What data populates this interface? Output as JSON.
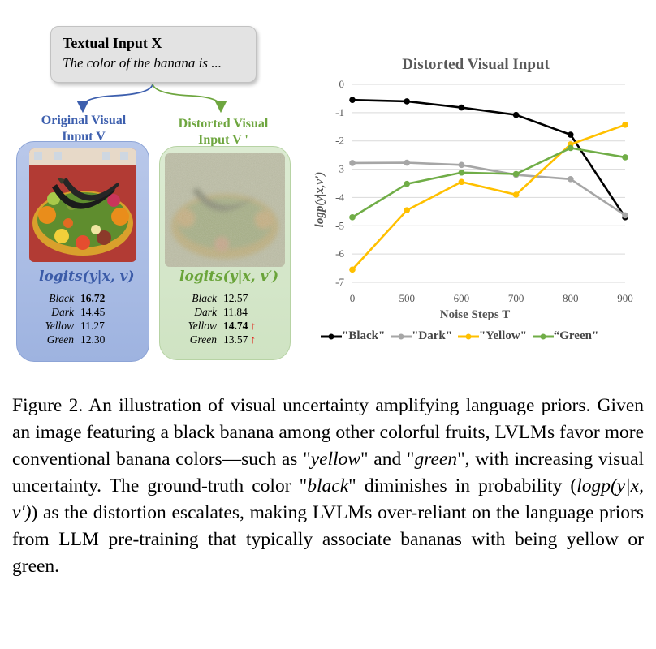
{
  "textual_input": {
    "title": "Textual Input X",
    "prompt": "The color of the banana is ..."
  },
  "original": {
    "label": "Original Visual Input V",
    "logits_title": "logits(y|x, v)",
    "rows": [
      {
        "name": "Black",
        "value": "16.72",
        "bold": true,
        "up": false
      },
      {
        "name": "Dark",
        "value": "14.45",
        "bold": false,
        "up": false
      },
      {
        "name": "Yellow",
        "value": "11.27",
        "bold": false,
        "up": false
      },
      {
        "name": "Green",
        "value": "12.30",
        "bold": false,
        "up": false
      }
    ]
  },
  "distorted": {
    "label": "Distorted Visual Input V '",
    "logits_title": "logits(y|x, v′)",
    "rows": [
      {
        "name": "Black",
        "value": "12.57",
        "bold": false,
        "up": false
      },
      {
        "name": "Dark",
        "value": "11.84",
        "bold": false,
        "up": false
      },
      {
        "name": "Yellow",
        "value": "14.74",
        "bold": true,
        "up": true
      },
      {
        "name": "Green",
        "value": "13.57",
        "bold": false,
        "up": true
      }
    ]
  },
  "up_arrow_icon": "up-arrow-icon",
  "chart_data": {
    "type": "line",
    "title": "Distorted Visual Input",
    "xlabel": "Noise Steps T",
    "ylabel": "logp(y|x,v')",
    "x": [
      "0",
      "500",
      "600",
      "700",
      "800",
      "900"
    ],
    "ylim": [
      -7,
      0
    ],
    "yticks": [
      "0",
      "-1",
      "-2",
      "-3",
      "-4",
      "-5",
      "-6",
      "-7"
    ],
    "grid": true,
    "legend_position": "bottom",
    "series": [
      {
        "name": "\"Black\"",
        "color": "#000000",
        "values": [
          -0.55,
          -0.6,
          -0.82,
          -1.08,
          -1.78,
          -4.7
        ]
      },
      {
        "name": "\"Dark\"",
        "color": "#a6a6a6",
        "values": [
          -2.78,
          -2.77,
          -2.85,
          -3.2,
          -3.35,
          -4.63
        ]
      },
      {
        "name": "\"Yellow\"",
        "color": "#ffc000",
        "values": [
          -6.55,
          -4.45,
          -3.45,
          -3.9,
          -2.12,
          -1.43
        ]
      },
      {
        "name": "“Green\"",
        "color": "#70ad47",
        "values": [
          -4.7,
          -3.52,
          -3.12,
          -3.17,
          -2.25,
          -2.58
        ]
      }
    ]
  },
  "caption": {
    "p1": "Figure 2. An illustration of visual uncertainty amplifying language priors. Given an image featuring a black banana among other colorful fruits, LVLMs favor more conventional banana colors—such as \"",
    "yellow": "yellow",
    "p2": "\" and \"",
    "green": "green",
    "p3": "\", with increasing visual uncertainty. The ground-truth color \"",
    "black": "black",
    "p4": "\" diminishes in probability (",
    "math": "logp(y|x, v′)",
    "p5": ") as the distortion escalates, making LVLMs over-reliant on the language priors from LLM pre-training that typically associate bananas with being yellow or green."
  }
}
